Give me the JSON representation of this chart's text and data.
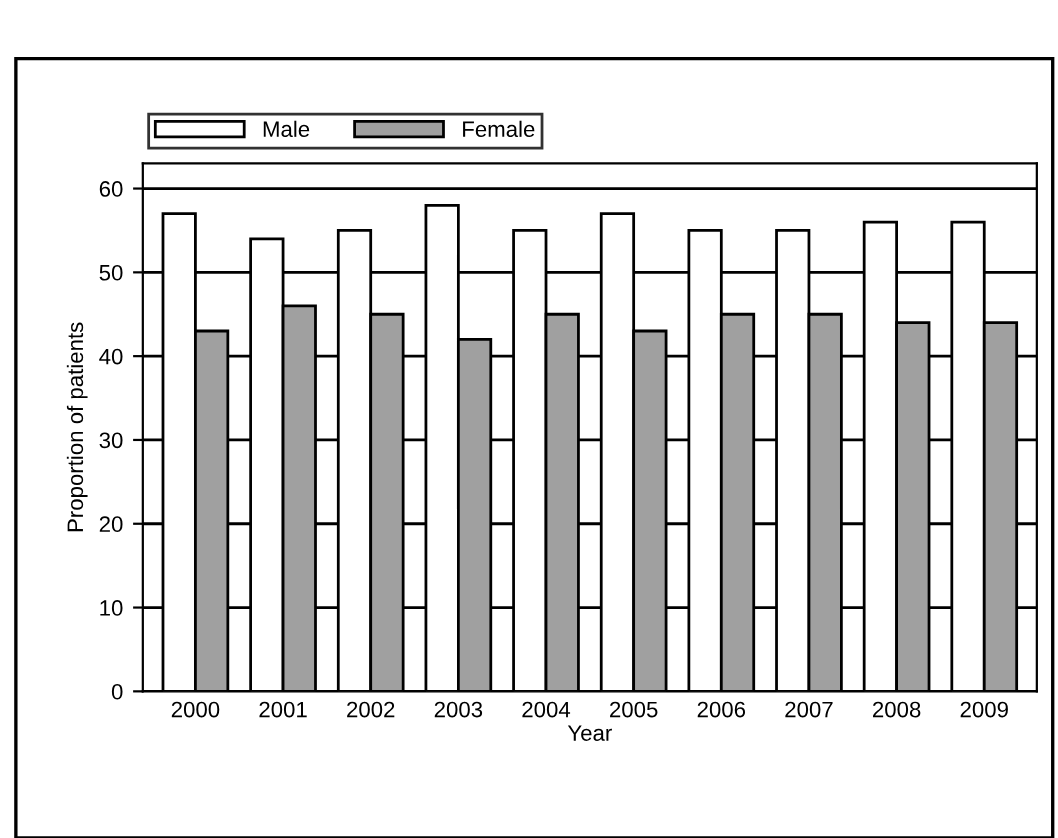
{
  "chart_data": {
    "type": "bar",
    "xlabel": "Year",
    "ylabel": "Proportion of patients",
    "categories": [
      "2000",
      "2001",
      "2002",
      "2003",
      "2004",
      "2005",
      "2006",
      "2007",
      "2008",
      "2009"
    ],
    "series": [
      {
        "name": "Male",
        "color": "#ffffff",
        "values": [
          57,
          54,
          55,
          58,
          55,
          57,
          55,
          55,
          56,
          56
        ]
      },
      {
        "name": "Female",
        "color": "#a0a0a0",
        "values": [
          43,
          46,
          45,
          42,
          45,
          43,
          45,
          45,
          44,
          44
        ]
      }
    ],
    "ylim": [
      0,
      63
    ],
    "yticks": [
      0,
      10,
      20,
      30,
      40,
      50,
      60
    ],
    "grid": "y",
    "legend": "top left"
  }
}
